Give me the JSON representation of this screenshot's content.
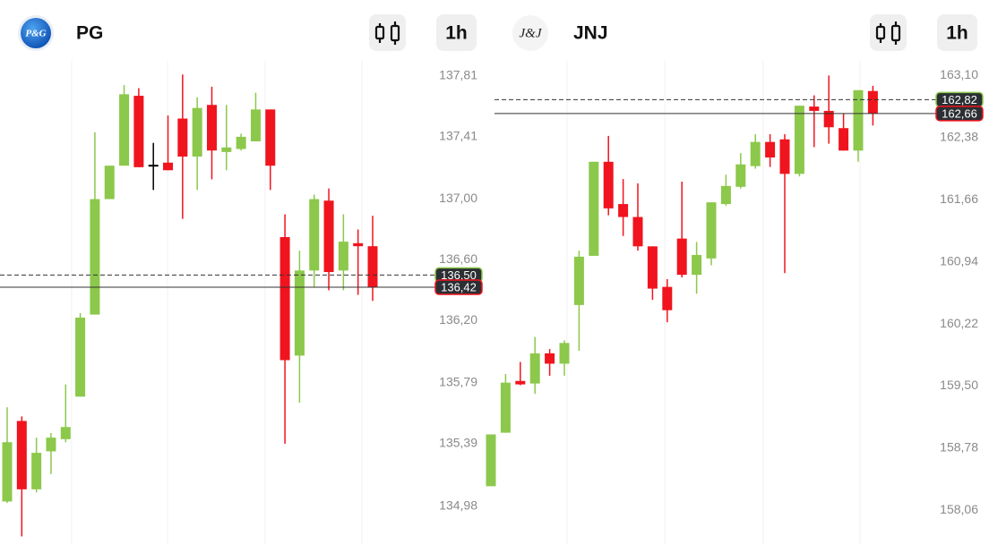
{
  "chart_data": [
    {
      "type": "candlestick",
      "title": "PG",
      "logo_text": "P&G",
      "interval": "1h",
      "up_color": "#8cc84b",
      "down_color": "#f0141e",
      "doji_color": "#000000",
      "open": [
        135.01,
        135.54,
        135.09,
        135.34,
        135.42,
        135.7,
        136.24,
        137.0,
        137.22,
        137.68,
        137.22,
        137.24,
        137.53,
        137.28,
        137.62,
        137.31,
        137.33,
        137.38,
        137.59,
        136.75,
        135.97,
        136.53,
        136.99,
        136.53,
        136.71,
        136.69
      ],
      "high": [
        135.63,
        135.57,
        135.43,
        135.46,
        135.78,
        136.25,
        137.44,
        137.22,
        137.75,
        137.73,
        137.37,
        137.55,
        137.82,
        137.67,
        137.74,
        137.62,
        137.43,
        137.7,
        137.59,
        136.9,
        136.66,
        137.03,
        137.07,
        136.9,
        136.8,
        136.89
      ],
      "low": [
        135.0,
        134.78,
        135.07,
        135.19,
        135.4,
        135.7,
        136.24,
        137.0,
        137.22,
        137.21,
        137.06,
        137.19,
        136.87,
        137.06,
        137.13,
        137.19,
        137.32,
        137.38,
        137.06,
        135.39,
        135.66,
        136.42,
        136.4,
        136.4,
        136.37,
        136.33
      ],
      "close": [
        135.4,
        135.09,
        135.33,
        135.43,
        135.5,
        136.22,
        137.0,
        137.22,
        137.69,
        137.21,
        137.22,
        137.19,
        137.28,
        137.6,
        137.32,
        137.34,
        137.41,
        137.59,
        137.22,
        135.94,
        136.53,
        137.0,
        136.52,
        136.72,
        136.69,
        136.42
      ],
      "ylim": [
        134.73,
        137.91
      ],
      "yticks": [
        {
          "value": 137.81,
          "label": "137,81"
        },
        {
          "value": 137.41,
          "label": "137,41"
        },
        {
          "value": 137.0,
          "label": "137,00"
        },
        {
          "value": 136.6,
          "label": "136,60"
        },
        {
          "value": 136.2,
          "label": "136,20"
        },
        {
          "value": 135.79,
          "label": "135,79"
        },
        {
          "value": 135.39,
          "label": "135,39"
        },
        {
          "value": 134.98,
          "label": "134,98"
        }
      ],
      "price_lines": [
        {
          "value": 136.5,
          "label": "136,50",
          "style": "dashed",
          "color": "#8cc84b"
        },
        {
          "value": 136.42,
          "label": "136,42",
          "style": "solid",
          "color": "#f0141e"
        }
      ]
    },
    {
      "type": "candlestick",
      "title": "JNJ",
      "logo_text": "J&J",
      "interval": "1h",
      "up_color": "#8cc84b",
      "down_color": "#f0141e",
      "open": [
        158.34,
        158.96,
        159.56,
        159.53,
        159.88,
        159.76,
        160.44,
        161.01,
        162.1,
        161.61,
        161.46,
        161.12,
        160.65,
        161.21,
        160.79,
        160.98,
        161.61,
        161.81,
        162.05,
        162.33,
        162.36,
        161.96,
        162.74,
        162.69,
        162.49,
        162.23,
        162.92
      ],
      "high": [
        158.94,
        159.64,
        159.78,
        160.07,
        159.93,
        160.03,
        161.07,
        162.1,
        162.4,
        161.9,
        161.85,
        161.12,
        160.74,
        161.87,
        161.17,
        161.63,
        161.95,
        162.2,
        162.42,
        162.42,
        162.42,
        162.75,
        162.87,
        163.1,
        162.66,
        162.93,
        162.98
      ],
      "low": [
        158.34,
        158.96,
        159.51,
        159.41,
        159.62,
        159.62,
        159.91,
        161.01,
        161.48,
        161.24,
        161.07,
        160.5,
        160.24,
        160.76,
        160.57,
        160.9,
        161.59,
        161.79,
        162.02,
        162.04,
        160.81,
        161.93,
        162.27,
        162.31,
        162.23,
        162.1,
        162.52
      ],
      "close": [
        158.94,
        159.54,
        159.52,
        159.88,
        159.76,
        160.0,
        161.0,
        162.1,
        161.56,
        161.46,
        161.12,
        160.63,
        160.38,
        160.79,
        161.02,
        161.63,
        161.82,
        162.07,
        162.33,
        162.15,
        161.96,
        162.75,
        162.69,
        162.5,
        162.23,
        162.93,
        162.66
      ],
      "ylim": [
        157.67,
        163.27
      ],
      "yticks": [
        {
          "value": 163.1,
          "label": "163,10"
        },
        {
          "value": 162.38,
          "label": "162,38"
        },
        {
          "value": 161.66,
          "label": "161,66"
        },
        {
          "value": 160.94,
          "label": "160,94"
        },
        {
          "value": 160.22,
          "label": "160,22"
        },
        {
          "value": 159.5,
          "label": "159,50"
        },
        {
          "value": 158.78,
          "label": "158,78"
        },
        {
          "value": 158.06,
          "label": "158,06"
        }
      ],
      "price_lines": [
        {
          "value": 162.82,
          "label": "162,82",
          "style": "dashed",
          "color": "#8cc84b"
        },
        {
          "value": 162.66,
          "label": "162,66",
          "style": "solid",
          "color": "#f0141e"
        }
      ]
    }
  ]
}
